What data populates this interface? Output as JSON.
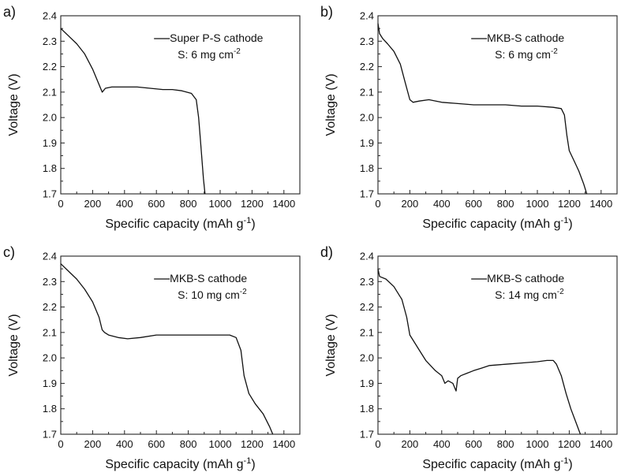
{
  "figure": {
    "description_type": "four-panel discharge voltage profiles"
  },
  "chart_data": [
    {
      "panel_label": "a)",
      "type": "line",
      "xlabel": "Specific capacity (mAh g",
      "xlabel_sup": "-1",
      "xlabel_close": ")",
      "ylabel": "Voltage (V)",
      "xlim": [
        0,
        1500
      ],
      "ylim": [
        1.7,
        2.4
      ],
      "xticks": [
        0,
        200,
        400,
        600,
        800,
        1000,
        1200,
        1400
      ],
      "yticks": [
        1.7,
        1.8,
        1.9,
        2.0,
        2.1,
        2.2,
        2.3,
        2.4
      ],
      "legend_position": "top-right",
      "legend_line1": "Super P-S cathode",
      "legend_line2_prefix": "S: 6 mg cm",
      "legend_line2_sup": "-2",
      "series": [
        {
          "name": "Super P-S cathode",
          "x": [
            0,
            50,
            100,
            150,
            200,
            240,
            260,
            280,
            320,
            400,
            480,
            560,
            640,
            700,
            760,
            820,
            850,
            865,
            875,
            885,
            895,
            905
          ],
          "y": [
            2.35,
            2.32,
            2.29,
            2.25,
            2.19,
            2.13,
            2.1,
            2.115,
            2.12,
            2.12,
            2.12,
            2.115,
            2.11,
            2.11,
            2.105,
            2.095,
            2.07,
            2.0,
            1.92,
            1.84,
            1.76,
            1.7
          ]
        }
      ]
    },
    {
      "panel_label": "b)",
      "type": "line",
      "xlabel": "Specific capacity (mAh g",
      "xlabel_sup": "-1",
      "xlabel_close": ")",
      "ylabel": "Voltage (V)",
      "xlim": [
        0,
        1500
      ],
      "ylim": [
        1.7,
        2.4
      ],
      "xticks": [
        0,
        200,
        400,
        600,
        800,
        1000,
        1200,
        1400
      ],
      "yticks": [
        1.7,
        1.8,
        1.9,
        2.0,
        2.1,
        2.2,
        2.3,
        2.4
      ],
      "legend_position": "top-right",
      "legend_line1": "MKB-S cathode",
      "legend_line2_prefix": "S: 6 mg cm",
      "legend_line2_sup": "-2",
      "series": [
        {
          "name": "MKB-S cathode",
          "x": [
            0,
            10,
            30,
            60,
            100,
            140,
            170,
            200,
            220,
            260,
            320,
            400,
            500,
            600,
            700,
            800,
            900,
            1000,
            1100,
            1150,
            1170,
            1185,
            1200,
            1230,
            1260,
            1290,
            1310
          ],
          "y": [
            2.37,
            2.33,
            2.31,
            2.29,
            2.26,
            2.21,
            2.14,
            2.07,
            2.06,
            2.065,
            2.07,
            2.06,
            2.055,
            2.05,
            2.05,
            2.05,
            2.045,
            2.045,
            2.04,
            2.035,
            2.01,
            1.93,
            1.87,
            1.83,
            1.79,
            1.74,
            1.7
          ]
        }
      ]
    },
    {
      "panel_label": "c)",
      "type": "line",
      "xlabel": "Specific capacity (mAh g",
      "xlabel_sup": "-1",
      "xlabel_close": ")",
      "ylabel": "Voltage (V)",
      "xlim": [
        0,
        1500
      ],
      "ylim": [
        1.7,
        2.4
      ],
      "xticks": [
        0,
        200,
        400,
        600,
        800,
        1000,
        1200,
        1400
      ],
      "yticks": [
        1.7,
        1.8,
        1.9,
        2.0,
        2.1,
        2.2,
        2.3,
        2.4
      ],
      "legend_position": "top-right",
      "legend_line1": "MKB-S cathode",
      "legend_line2_prefix": "S: 10 mg cm",
      "legend_line2_sup": "-2",
      "series": [
        {
          "name": "MKB-S cathode",
          "x": [
            0,
            50,
            100,
            150,
            200,
            240,
            260,
            275,
            300,
            360,
            420,
            500,
            600,
            700,
            800,
            900,
            1000,
            1060,
            1100,
            1130,
            1150,
            1180,
            1220,
            1270,
            1310,
            1330
          ],
          "y": [
            2.37,
            2.34,
            2.31,
            2.27,
            2.22,
            2.16,
            2.11,
            2.1,
            2.09,
            2.08,
            2.075,
            2.08,
            2.09,
            2.09,
            2.09,
            2.09,
            2.09,
            2.09,
            2.08,
            2.03,
            1.93,
            1.86,
            1.82,
            1.78,
            1.73,
            1.7
          ]
        }
      ]
    },
    {
      "panel_label": "d)",
      "type": "line",
      "xlabel": "Specific capacity (mAh g",
      "xlabel_sup": "-1",
      "xlabel_close": ")",
      "ylabel": "Voltage (V)",
      "xlim": [
        0,
        1500
      ],
      "ylim": [
        1.7,
        2.4
      ],
      "xticks": [
        0,
        200,
        400,
        600,
        800,
        1000,
        1200,
        1400
      ],
      "yticks": [
        1.7,
        1.8,
        1.9,
        2.0,
        2.1,
        2.2,
        2.3,
        2.4
      ],
      "legend_position": "top-right",
      "legend_line1": "MKB-S cathode",
      "legend_line2_prefix": "S: 14 mg cm",
      "legend_line2_sup": "-2",
      "series": [
        {
          "name": "MKB-S cathode",
          "x": [
            0,
            10,
            50,
            100,
            150,
            180,
            200,
            220,
            260,
            300,
            360,
            400,
            420,
            440,
            470,
            490,
            500,
            520,
            560,
            600,
            650,
            700,
            800,
            900,
            1000,
            1060,
            1100,
            1120,
            1150,
            1180,
            1210,
            1240,
            1270
          ],
          "y": [
            2.35,
            2.32,
            2.31,
            2.28,
            2.23,
            2.16,
            2.09,
            2.07,
            2.03,
            1.99,
            1.95,
            1.93,
            1.9,
            1.91,
            1.9,
            1.87,
            1.92,
            1.93,
            1.94,
            1.95,
            1.96,
            1.97,
            1.975,
            1.98,
            1.985,
            1.99,
            1.99,
            1.975,
            1.93,
            1.86,
            1.8,
            1.75,
            1.7
          ]
        }
      ]
    }
  ]
}
